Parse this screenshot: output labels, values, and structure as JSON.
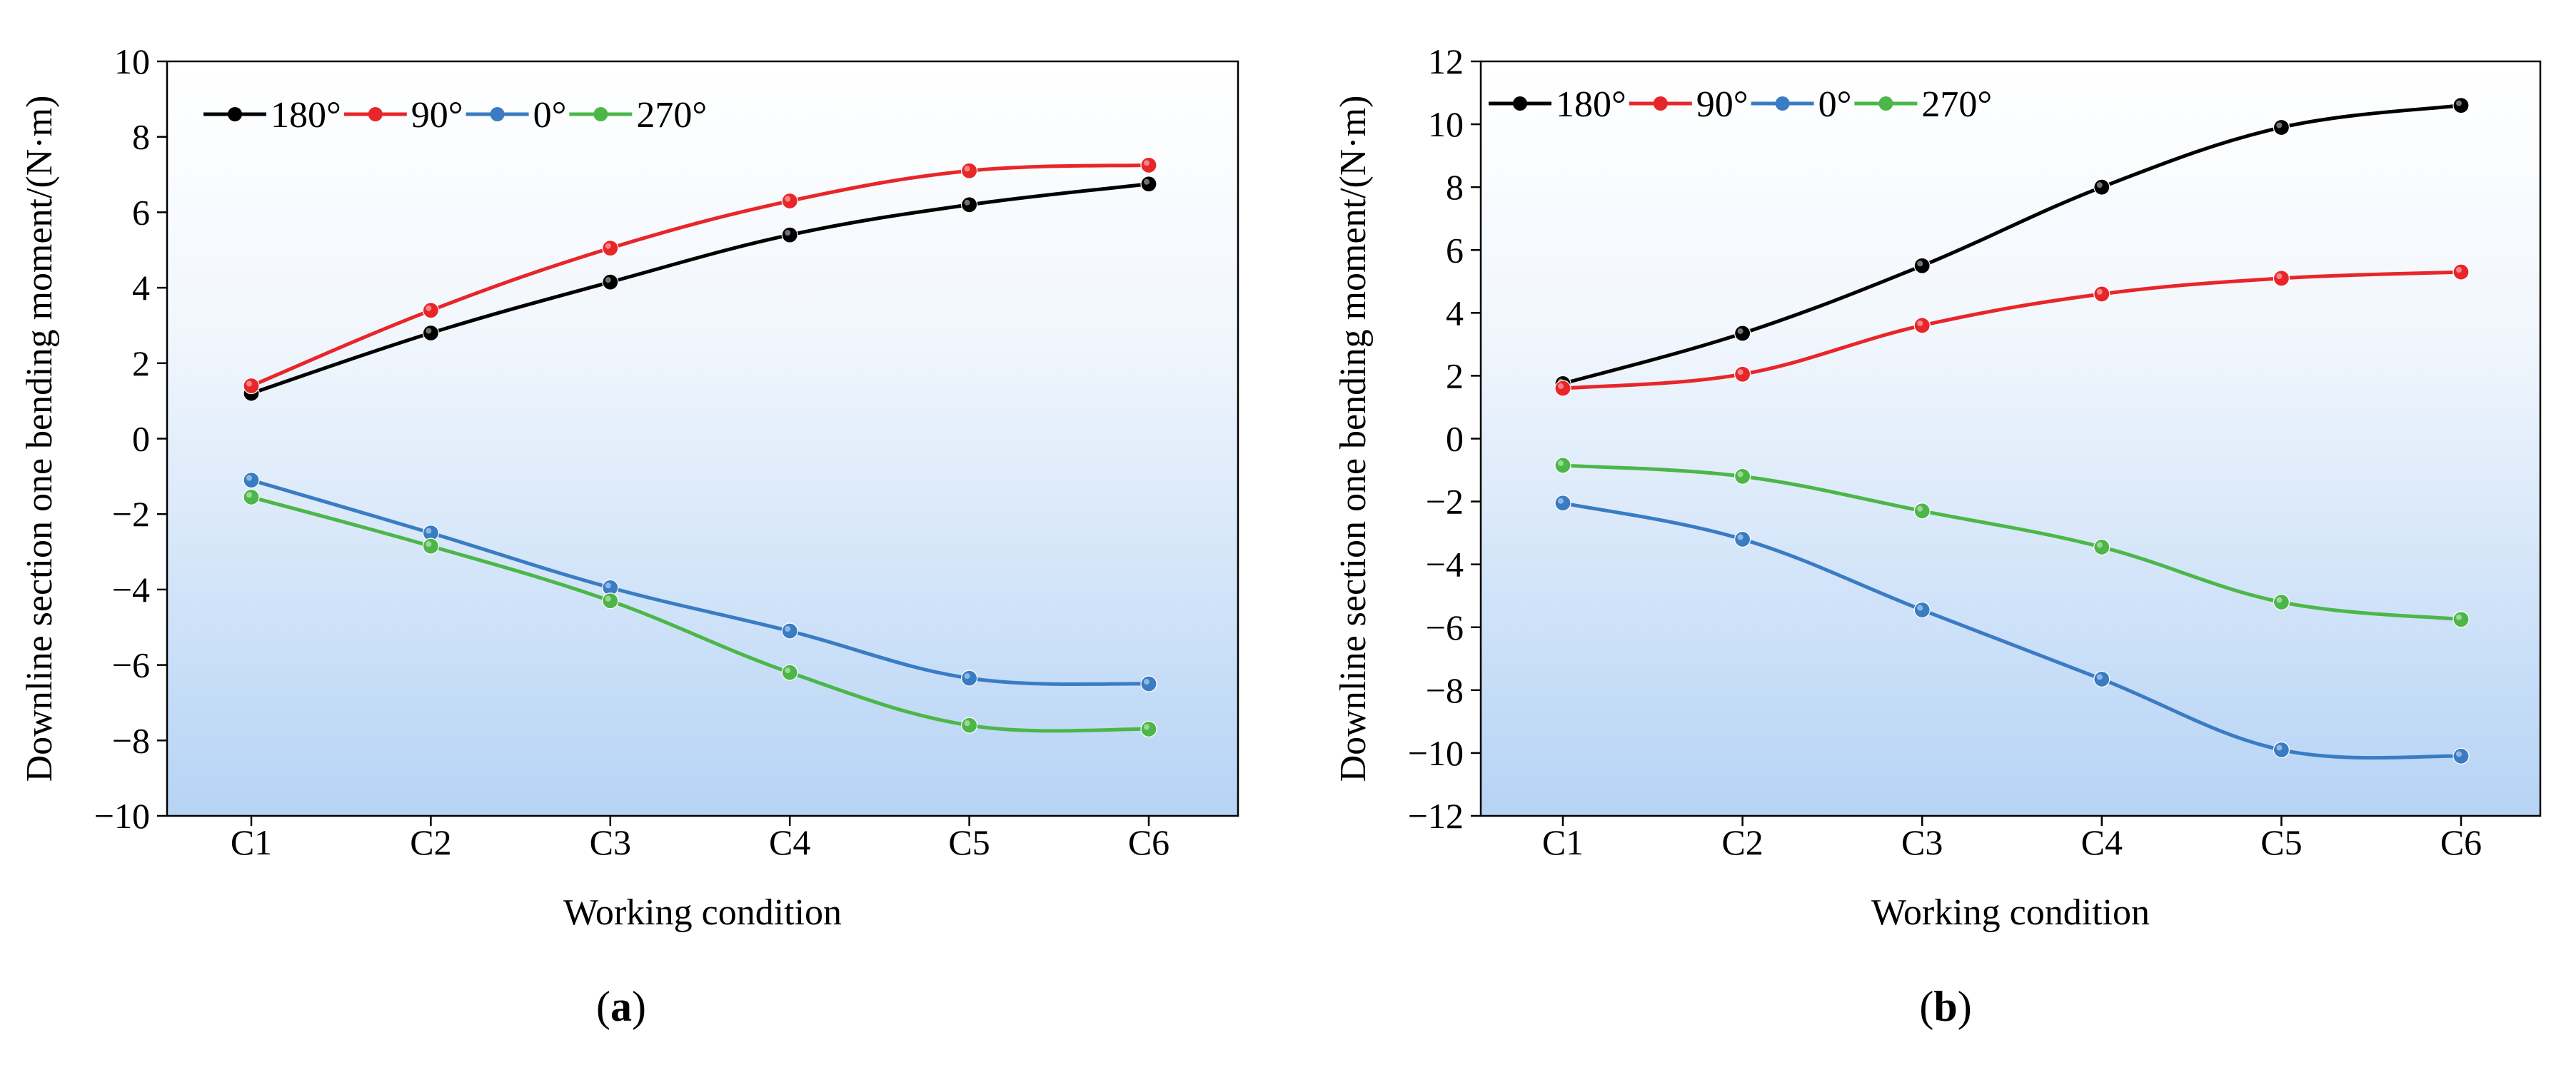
{
  "chart_data": [
    {
      "id": "a",
      "type": "line",
      "panel_label": "a",
      "xlabel": "Working condition",
      "ylabel": "Downline section one bending moment/(N·m)",
      "categories": [
        "C1",
        "C2",
        "C3",
        "C4",
        "C5",
        "C6"
      ],
      "ylim": [
        -10,
        10
      ],
      "yticks": [
        -10,
        -8,
        -6,
        -4,
        -2,
        0,
        2,
        4,
        6,
        8,
        10
      ],
      "legend_position": "top-left",
      "series": [
        {
          "name": "180°",
          "color": "#000000",
          "values": [
            1.2,
            2.8,
            4.15,
            5.4,
            6.2,
            6.75
          ]
        },
        {
          "name": "90°",
          "color": "#e8262a",
          "values": [
            1.4,
            3.4,
            5.05,
            6.3,
            7.1,
            7.25
          ]
        },
        {
          "name": "0°",
          "color": "#3a7cc4",
          "values": [
            -1.1,
            -2.5,
            -3.95,
            -5.1,
            -6.35,
            -6.5
          ]
        },
        {
          "name": "270°",
          "color": "#4cb748",
          "values": [
            -1.55,
            -2.85,
            -4.3,
            -6.2,
            -7.6,
            -7.7
          ]
        }
      ]
    },
    {
      "id": "b",
      "type": "line",
      "panel_label": "b",
      "xlabel": "Working condition",
      "ylabel": "Downline section one bending moment/(N·m)",
      "categories": [
        "C1",
        "C2",
        "C3",
        "C4",
        "C5",
        "C6"
      ],
      "ylim": [
        -12,
        12
      ],
      "yticks": [
        -12,
        -10,
        -8,
        -6,
        -4,
        -2,
        0,
        2,
        4,
        6,
        8,
        10,
        12
      ],
      "legend_position": "top-left",
      "series": [
        {
          "name": "180°",
          "color": "#000000",
          "values": [
            1.75,
            3.35,
            5.5,
            8.0,
            9.9,
            10.6
          ]
        },
        {
          "name": "90°",
          "color": "#e8262a",
          "values": [
            1.6,
            2.05,
            3.6,
            4.6,
            5.1,
            5.3
          ]
        },
        {
          "name": "0°",
          "color": "#3a7cc4",
          "values": [
            -2.05,
            -3.2,
            -5.45,
            -7.65,
            -9.9,
            -10.1
          ]
        },
        {
          "name": "270°",
          "color": "#4cb748",
          "values": [
            -0.85,
            -1.2,
            -2.3,
            -3.45,
            -5.2,
            -5.75
          ]
        }
      ]
    }
  ]
}
